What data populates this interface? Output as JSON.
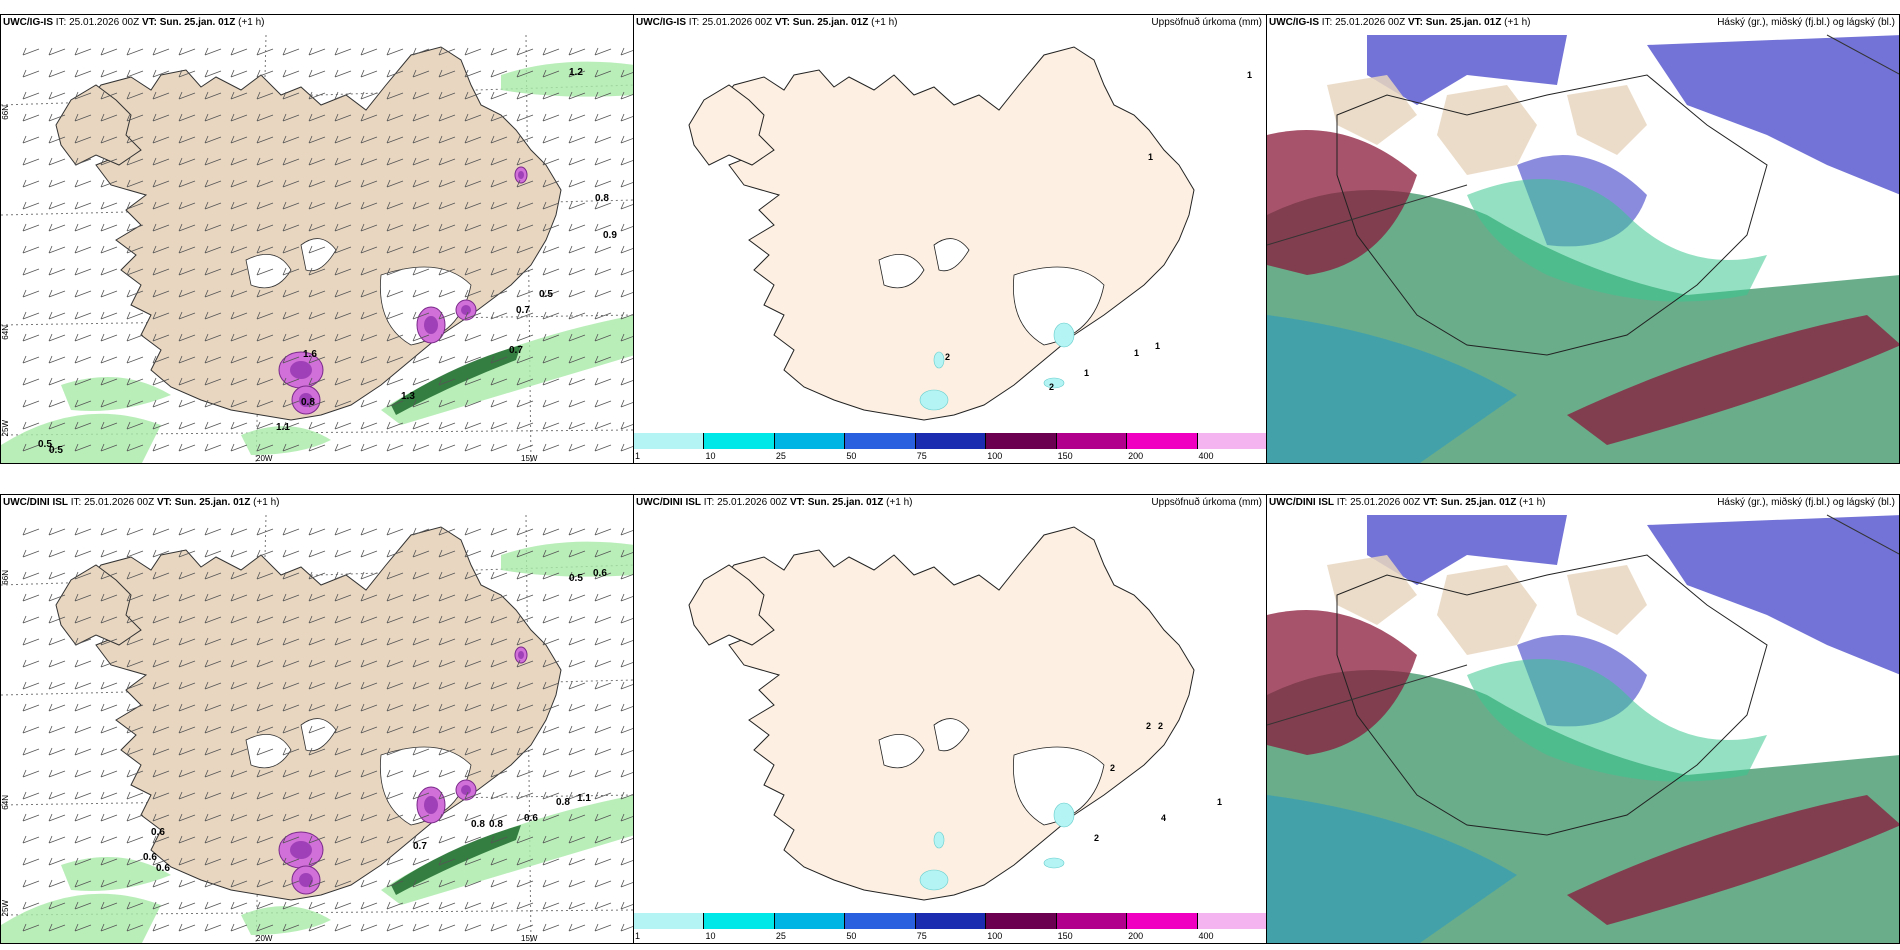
{
  "rows": [
    {
      "model": "UWC/IG-IS",
      "it_label": "IT: 25.01.2026 00Z",
      "vt_label": "VT: Sun. 25.jan. 01Z",
      "lead": "(+1 h)",
      "wind_labels": [
        "1.2",
        "0.8",
        "0.9",
        "0.5",
        "0.7",
        "0.7",
        "1.3",
        "1.6",
        "0.8",
        "1.1",
        "0.5",
        "0.5"
      ],
      "precip_labels": [
        "1",
        "1",
        "1",
        "1",
        "1",
        "2",
        "2"
      ]
    },
    {
      "model": "UWC/DINI ISL",
      "it_label": "IT: 25.01.2026 00Z",
      "vt_label": "VT: Sun. 25.jan. 01Z",
      "lead": "(+1 h)",
      "wind_labels": [
        "0.5",
        "0.6",
        "0.8",
        "1.1",
        "0.6",
        "0.6",
        "0.6",
        "0.7",
        "0.8",
        "0.8",
        "0.6"
      ],
      "precip_labels": [
        "2",
        "2",
        "2",
        "1",
        "4",
        "2"
      ]
    }
  ],
  "precip_title": "Uppsöfnuð úrkoma (mm)",
  "cloud_title": "Háský (gr.), miðský (fj.bl.) og lágský (bl.)",
  "axes": {
    "lat_66": "66N",
    "lat_64": "64N",
    "lon_20": "20W",
    "lon_15": "15W",
    "lon_25": "25W"
  },
  "colorbar": {
    "labels": [
      "1",
      "10",
      "25",
      "50",
      "75",
      "100",
      "150",
      "200",
      "400"
    ],
    "colors": [
      "#b4f4f4",
      "#00e8e8",
      "#00b4e4",
      "#2860e0",
      "#1c2cb0",
      "#6c0050",
      "#b0008c",
      "#f000c0",
      "#f4b4f0"
    ]
  }
}
